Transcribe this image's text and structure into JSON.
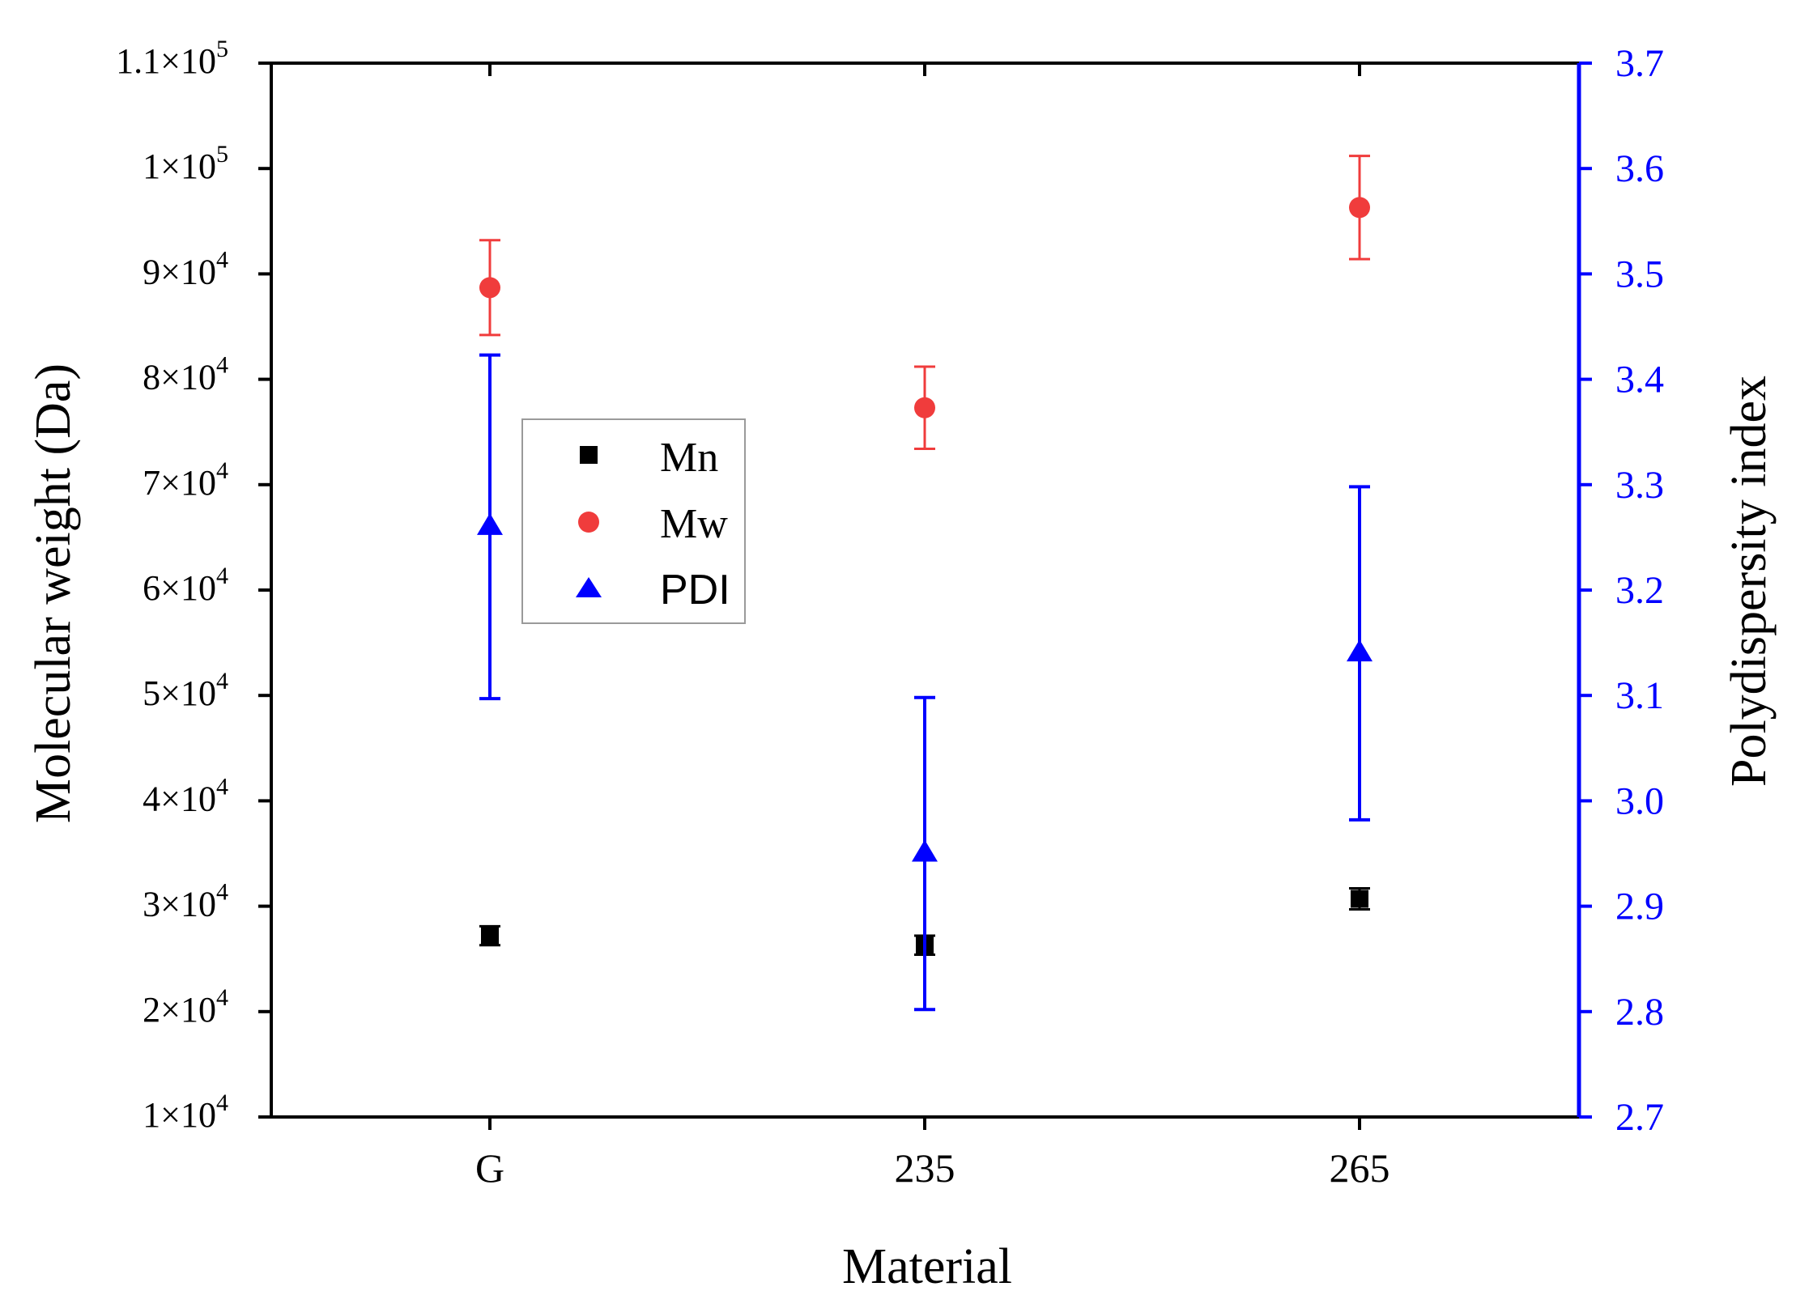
{
  "chart_data": {
    "type": "scatter",
    "title": "",
    "xlabel": "Material",
    "ylabel": "Molecular weight (Da)",
    "y2label": "Polydispersity index",
    "categories": [
      "G",
      "235",
      "265"
    ],
    "ylim": [
      10000,
      110000
    ],
    "y2lim": [
      2.7,
      3.7
    ],
    "y_ticks": [
      {
        "value": 10000,
        "mant": "1",
        "exp": "4"
      },
      {
        "value": 20000,
        "mant": "2",
        "exp": "4"
      },
      {
        "value": 30000,
        "mant": "3",
        "exp": "4"
      },
      {
        "value": 40000,
        "mant": "4",
        "exp": "4"
      },
      {
        "value": 50000,
        "mant": "5",
        "exp": "4"
      },
      {
        "value": 60000,
        "mant": "6",
        "exp": "4"
      },
      {
        "value": 70000,
        "mant": "7",
        "exp": "4"
      },
      {
        "value": 80000,
        "mant": "8",
        "exp": "4"
      },
      {
        "value": 90000,
        "mant": "9",
        "exp": "4"
      },
      {
        "value": 100000,
        "mant": "1",
        "exp": "5"
      },
      {
        "value": 110000,
        "mant": "1.1",
        "exp": "5"
      }
    ],
    "y2_ticks": [
      "2.7",
      "2.8",
      "2.9",
      "3.0",
      "3.1",
      "3.2",
      "3.3",
      "3.4",
      "3.5",
      "3.6",
      "3.7"
    ],
    "series": [
      {
        "name": "Mn",
        "axis": "left",
        "marker": "square",
        "color": "#000000",
        "values": [
          27200,
          26300,
          30700
        ],
        "errors": [
          900,
          900,
          1000
        ]
      },
      {
        "name": "Mw",
        "axis": "left",
        "marker": "circle",
        "color": "#f03c3c",
        "values": [
          88700,
          77300,
          96300
        ],
        "errors": [
          4500,
          3900,
          4900
        ]
      },
      {
        "name": "PDI",
        "axis": "right",
        "marker": "triangle",
        "color": "#0000ff",
        "values": [
          3.26,
          2.95,
          3.14
        ],
        "errors": [
          0.163,
          0.148,
          0.158
        ]
      }
    ],
    "legend": {
      "position": "upper-left-inside",
      "entries": [
        "Mn",
        "Mw",
        "PDI"
      ]
    },
    "colors": {
      "axis": "#000000",
      "right_axis": "#0000ff",
      "mn": "#000000",
      "mw": "#f03c3c",
      "pdi": "#0000ff"
    }
  }
}
